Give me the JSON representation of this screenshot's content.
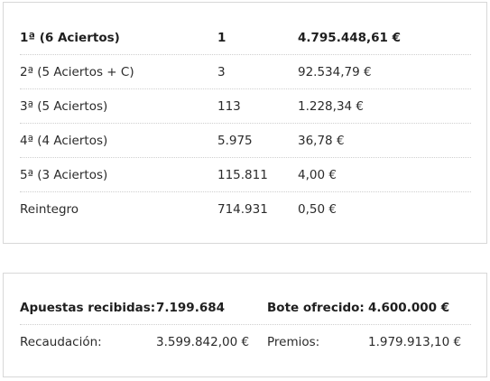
{
  "prizes": [
    {
      "category": "1ª (6 Aciertos)",
      "winners": "1",
      "amount": "4.795.448,61 €"
    },
    {
      "category": "2ª (5 Aciertos + C)",
      "winners": "3",
      "amount": "92.534,79 €"
    },
    {
      "category": "3ª (5 Aciertos)",
      "winners": "113",
      "amount": "1.228,34 €"
    },
    {
      "category": "4ª (4 Aciertos)",
      "winners": "5.975",
      "amount": "36,78 €"
    },
    {
      "category": "5ª (3 Aciertos)",
      "winners": "115.811",
      "amount": "4,00 €"
    },
    {
      "category": "Reintegro",
      "winners": "714.931",
      "amount": "0,50 €"
    }
  ],
  "summary": {
    "bets_label": "Apuestas recibidas:",
    "bets_value": "7.199.684",
    "jackpot_label": "Bote ofrecido:",
    "jackpot_value": "4.600.000 €",
    "collection_label": "Recaudación:",
    "collection_value": "3.599.842,00 €",
    "prizes_label": "Premios:",
    "prizes_value": "1.979.913,10 €"
  }
}
